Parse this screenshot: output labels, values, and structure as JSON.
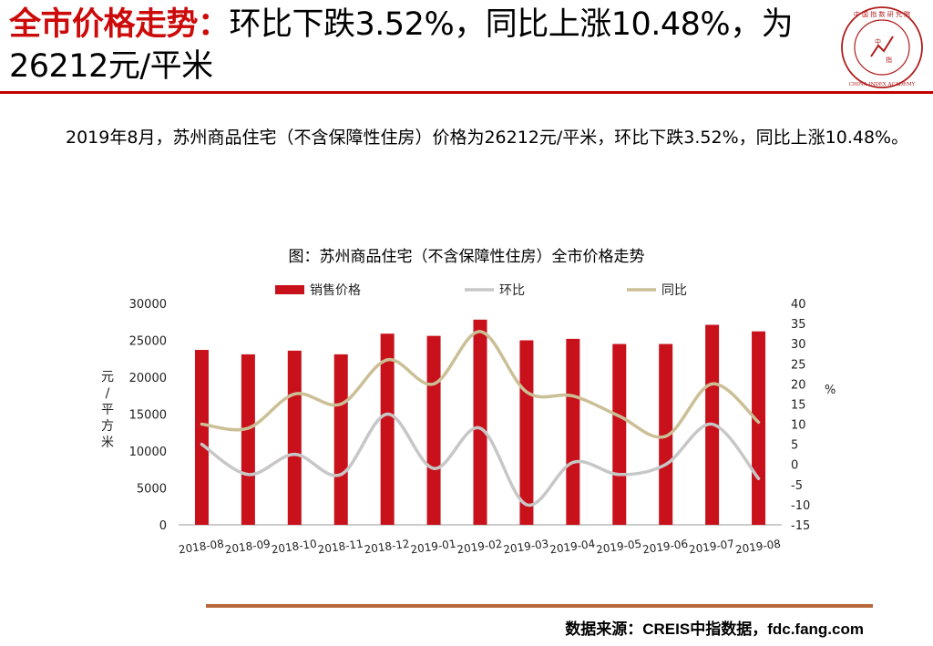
{
  "header": {
    "title_highlight": "全市价格走势：",
    "title_rest": "环比下跌3.52%，同比上涨10.48%，为26212元/平米"
  },
  "paragraph": "2019年8月，苏州商品住宅（不含保障性住房）价格为26212元/平米，环比下跌3.52%，同比上涨10.48%。",
  "footer": {
    "source": "数据来源：CREIS中指数据，fdc.fang.com"
  },
  "colors": {
    "accent": "#cc0a0a",
    "bar": "#c8111a",
    "mom_line": "#c7c7c7",
    "yoy_line": "#cbbf96",
    "rule_bottom": "#b8683a"
  },
  "chart_data": {
    "type": "bar",
    "title": "图：苏州商品住宅（不含保障性住房）全市价格走势",
    "categories": [
      "2018-08",
      "2018-09",
      "2018-10",
      "2018-11",
      "2018-12",
      "2019-01",
      "2019-02",
      "2019-03",
      "2019-04",
      "2019-05",
      "2019-06",
      "2019-07",
      "2019-08"
    ],
    "series": [
      {
        "name": "销售价格",
        "type": "bar",
        "axis": "left",
        "color": "#c8111a",
        "values": [
          23700,
          23100,
          23600,
          23100,
          25900,
          25600,
          27800,
          25000,
          25200,
          24500,
          24500,
          27100,
          26212
        ]
      },
      {
        "name": "环比",
        "type": "line",
        "axis": "right",
        "color": "#c7c7c7",
        "values": [
          5,
          -2.5,
          2.5,
          -2.5,
          12.5,
          -1,
          9,
          -10,
          0.5,
          -2.5,
          0,
          10,
          -3.52
        ]
      },
      {
        "name": "同比",
        "type": "line",
        "axis": "right",
        "color": "#cbbf96",
        "values": [
          10,
          9,
          17.5,
          15,
          26,
          20,
          33,
          18,
          17,
          12,
          7,
          20,
          10.48
        ]
      }
    ],
    "y_left": {
      "label": "元/平方米",
      "min": 0,
      "max": 30000,
      "ticks": [
        0,
        5000,
        10000,
        15000,
        20000,
        25000,
        30000
      ]
    },
    "y_right": {
      "label": "%",
      "min": -15,
      "max": 40,
      "ticks": [
        -15,
        -10,
        -5,
        0,
        5,
        10,
        15,
        20,
        25,
        30,
        35,
        40
      ]
    },
    "legend_position": "top",
    "grid": false
  }
}
